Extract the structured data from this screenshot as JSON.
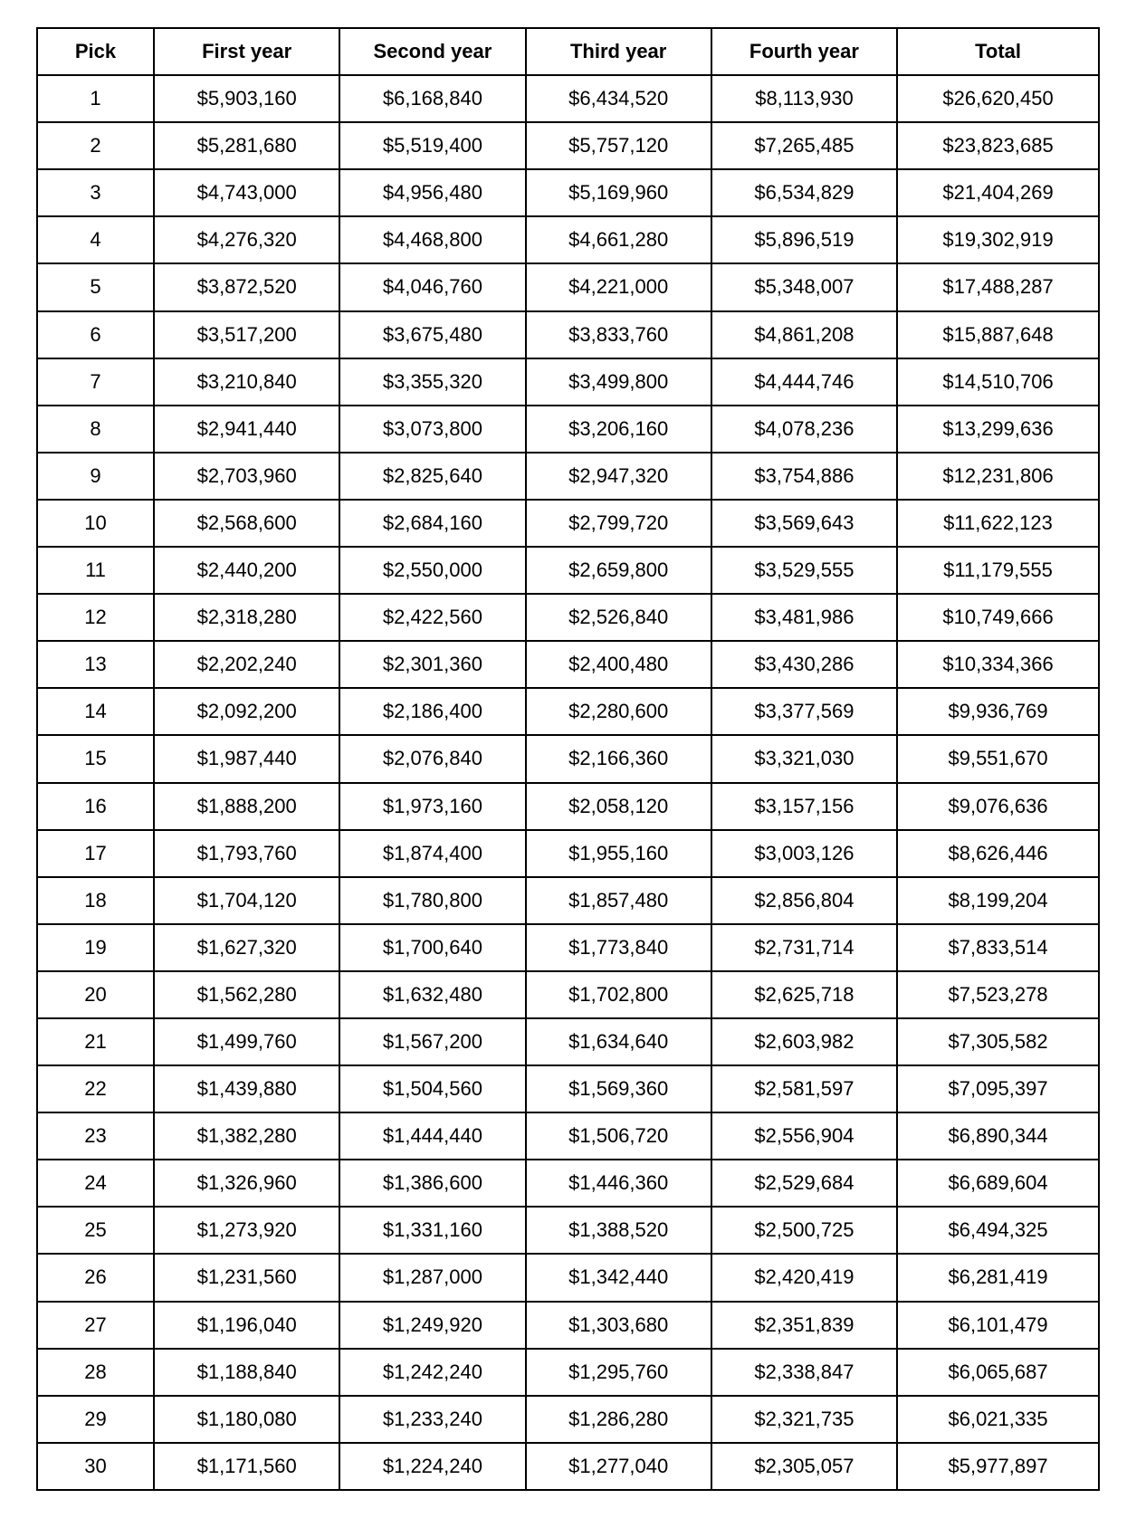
{
  "table": {
    "type": "table",
    "border_color": "#000000",
    "background_color": "#ffffff",
    "text_color": "#000000",
    "header_font_weight": "bold",
    "font_family": "Verdana, Geneva, sans-serif",
    "cell_fontsize_pt": 16,
    "cell_alignment": "center",
    "columns": [
      "Pick",
      "First year",
      "Second year",
      "Third year",
      "Fourth year",
      "Total"
    ],
    "column_widths_pct": [
      11,
      17.5,
      17.5,
      17.5,
      17.5,
      19
    ],
    "rows": [
      [
        "1",
        "$5,903,160",
        "$6,168,840",
        "$6,434,520",
        "$8,113,930",
        "$26,620,450"
      ],
      [
        "2",
        "$5,281,680",
        "$5,519,400",
        "$5,757,120",
        "$7,265,485",
        "$23,823,685"
      ],
      [
        "3",
        "$4,743,000",
        "$4,956,480",
        "$5,169,960",
        "$6,534,829",
        "$21,404,269"
      ],
      [
        "4",
        "$4,276,320",
        "$4,468,800",
        "$4,661,280",
        "$5,896,519",
        "$19,302,919"
      ],
      [
        "5",
        "$3,872,520",
        "$4,046,760",
        "$4,221,000",
        "$5,348,007",
        "$17,488,287"
      ],
      [
        "6",
        "$3,517,200",
        "$3,675,480",
        "$3,833,760",
        "$4,861,208",
        "$15,887,648"
      ],
      [
        "7",
        "$3,210,840",
        "$3,355,320",
        "$3,499,800",
        "$4,444,746",
        "$14,510,706"
      ],
      [
        "8",
        "$2,941,440",
        "$3,073,800",
        "$3,206,160",
        "$4,078,236",
        "$13,299,636"
      ],
      [
        "9",
        "$2,703,960",
        "$2,825,640",
        "$2,947,320",
        "$3,754,886",
        "$12,231,806"
      ],
      [
        "10",
        "$2,568,600",
        "$2,684,160",
        "$2,799,720",
        "$3,569,643",
        "$11,622,123"
      ],
      [
        "11",
        "$2,440,200",
        "$2,550,000",
        "$2,659,800",
        "$3,529,555",
        "$11,179,555"
      ],
      [
        "12",
        "$2,318,280",
        "$2,422,560",
        "$2,526,840",
        "$3,481,986",
        "$10,749,666"
      ],
      [
        "13",
        "$2,202,240",
        "$2,301,360",
        "$2,400,480",
        "$3,430,286",
        "$10,334,366"
      ],
      [
        "14",
        "$2,092,200",
        "$2,186,400",
        "$2,280,600",
        "$3,377,569",
        "$9,936,769"
      ],
      [
        "15",
        "$1,987,440",
        "$2,076,840",
        "$2,166,360",
        "$3,321,030",
        "$9,551,670"
      ],
      [
        "16",
        "$1,888,200",
        "$1,973,160",
        "$2,058,120",
        "$3,157,156",
        "$9,076,636"
      ],
      [
        "17",
        "$1,793,760",
        "$1,874,400",
        "$1,955,160",
        "$3,003,126",
        "$8,626,446"
      ],
      [
        "18",
        "$1,704,120",
        "$1,780,800",
        "$1,857,480",
        "$2,856,804",
        "$8,199,204"
      ],
      [
        "19",
        "$1,627,320",
        "$1,700,640",
        "$1,773,840",
        "$2,731,714",
        "$7,833,514"
      ],
      [
        "20",
        "$1,562,280",
        "$1,632,480",
        "$1,702,800",
        "$2,625,718",
        "$7,523,278"
      ],
      [
        "21",
        "$1,499,760",
        "$1,567,200",
        "$1,634,640",
        "$2,603,982",
        "$7,305,582"
      ],
      [
        "22",
        "$1,439,880",
        "$1,504,560",
        "$1,569,360",
        "$2,581,597",
        "$7,095,397"
      ],
      [
        "23",
        "$1,382,280",
        "$1,444,440",
        "$1,506,720",
        "$2,556,904",
        "$6,890,344"
      ],
      [
        "24",
        "$1,326,960",
        "$1,386,600",
        "$1,446,360",
        "$2,529,684",
        "$6,689,604"
      ],
      [
        "25",
        "$1,273,920",
        "$1,331,160",
        "$1,388,520",
        "$2,500,725",
        "$6,494,325"
      ],
      [
        "26",
        "$1,231,560",
        "$1,287,000",
        "$1,342,440",
        "$2,420,419",
        "$6,281,419"
      ],
      [
        "27",
        "$1,196,040",
        "$1,249,920",
        "$1,303,680",
        "$2,351,839",
        "$6,101,479"
      ],
      [
        "28",
        "$1,188,840",
        "$1,242,240",
        "$1,295,760",
        "$2,338,847",
        "$6,065,687"
      ],
      [
        "29",
        "$1,180,080",
        "$1,233,240",
        "$1,286,280",
        "$2,321,735",
        "$6,021,335"
      ],
      [
        "30",
        "$1,171,560",
        "$1,224,240",
        "$1,277,040",
        "$2,305,057",
        "$5,977,897"
      ]
    ]
  }
}
